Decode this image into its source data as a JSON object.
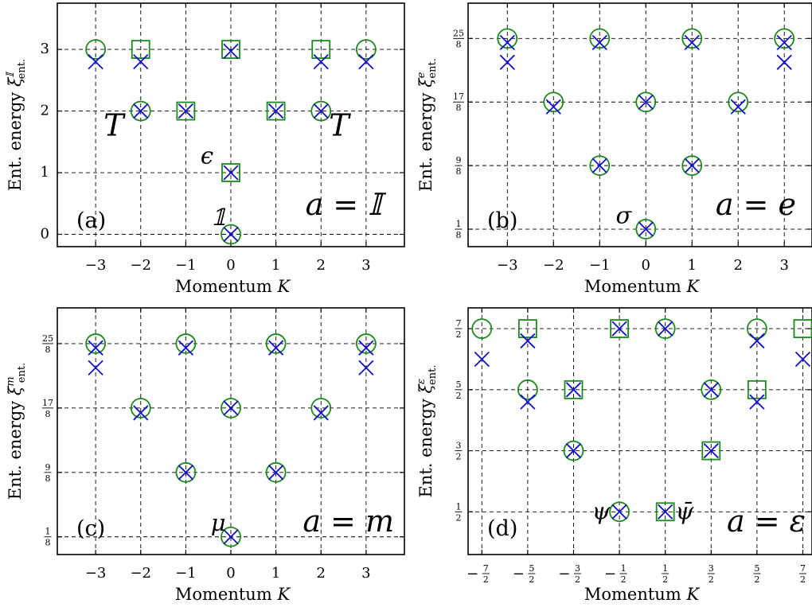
{
  "chart_data": [
    {
      "id": "a",
      "type": "scatter",
      "panel_label": "(a)",
      "sector_label": "a = 𝕀",
      "xlabel": "Momentum K",
      "ylabel": "Ent. energy ξ^𝕀_ent.",
      "xticks": [
        {
          "v": -3,
          "t": "−3"
        },
        {
          "v": -2,
          "t": "−2"
        },
        {
          "v": -1,
          "t": "−1"
        },
        {
          "v": 0,
          "t": "0"
        },
        {
          "v": 1,
          "t": "1"
        },
        {
          "v": 2,
          "t": "2"
        },
        {
          "v": 3,
          "t": "3"
        }
      ],
      "yticks": [
        {
          "v": 0,
          "t": "0"
        },
        {
          "v": 1,
          "t": "1"
        },
        {
          "v": 2,
          "t": "2"
        },
        {
          "v": 3,
          "t": "3"
        }
      ],
      "xlim": [
        -3.85,
        3.85
      ],
      "ylim": [
        -0.2,
        3.75
      ],
      "series": [
        {
          "marker": "circle",
          "points": [
            [
              0,
              0
            ],
            [
              -2,
              2
            ],
            [
              2,
              2
            ],
            [
              -3,
              3
            ],
            [
              3,
              3
            ]
          ]
        },
        {
          "marker": "square",
          "points": [
            [
              0,
              1
            ],
            [
              -1,
              2
            ],
            [
              1,
              2
            ],
            [
              -2,
              3
            ],
            [
              0,
              3
            ],
            [
              2,
              3
            ]
          ]
        },
        {
          "marker": "cross",
          "points": [
            [
              0,
              0
            ],
            [
              0,
              1
            ],
            [
              -2,
              2
            ],
            [
              -1,
              2
            ],
            [
              1,
              2
            ],
            [
              2,
              2
            ],
            [
              -3,
              2.8
            ],
            [
              -2,
              2.8
            ],
            [
              0,
              2.97
            ],
            [
              2,
              2.8
            ],
            [
              3,
              2.8
            ]
          ]
        }
      ],
      "annotations": [
        {
          "text": "𝟙",
          "x": -0.27,
          "y": 0.15,
          "style": "mid"
        },
        {
          "text": "ϵ",
          "x": -0.53,
          "y": 1.15,
          "style": "mid"
        },
        {
          "text": "T",
          "x": -2.6,
          "y": 1.6,
          "style": "big"
        },
        {
          "text": "T",
          "x": 2.4,
          "y": 1.6,
          "style": "big"
        }
      ]
    },
    {
      "id": "b",
      "type": "scatter",
      "panel_label": "(b)",
      "sector_label": "a = e",
      "xlabel": "Momentum K",
      "ylabel": "Ent. energy ξ^e_ent.",
      "xticks": [
        {
          "v": -3,
          "t": "−3"
        },
        {
          "v": -2,
          "t": "−2"
        },
        {
          "v": -1,
          "t": "−1"
        },
        {
          "v": 0,
          "t": "0"
        },
        {
          "v": 1,
          "t": "1"
        },
        {
          "v": 2,
          "t": "2"
        },
        {
          "v": 3,
          "t": "3"
        }
      ],
      "yticks": [
        {
          "v": 0.125,
          "t": "1/8"
        },
        {
          "v": 1.125,
          "t": "9/8"
        },
        {
          "v": 2.125,
          "t": "17/8"
        },
        {
          "v": 3.125,
          "t": "25/8"
        }
      ],
      "xlim": [
        -3.85,
        3.6
      ],
      "ylim": [
        -0.15,
        3.68
      ],
      "series": [
        {
          "marker": "circle",
          "points": [
            [
              0,
              0.125
            ],
            [
              -1,
              1.125
            ],
            [
              1,
              1.125
            ],
            [
              -2,
              2.125
            ],
            [
              0,
              2.125
            ],
            [
              2,
              2.125
            ],
            [
              -3,
              3.125
            ],
            [
              -1,
              3.125
            ],
            [
              1,
              3.125
            ],
            [
              3,
              3.125
            ]
          ]
        },
        {
          "marker": "cross",
          "points": [
            [
              0,
              0.125
            ],
            [
              -1,
              1.125
            ],
            [
              1,
              1.125
            ],
            [
              -2,
              2.05
            ],
            [
              0,
              2.125
            ],
            [
              2,
              2.05
            ],
            [
              -3,
              3.06
            ],
            [
              -1,
              3.06
            ],
            [
              1,
              3.06
            ],
            [
              3,
              3.06
            ],
            [
              -3,
              2.75
            ],
            [
              3,
              2.75
            ]
          ]
        }
      ],
      "annotations": [
        {
          "text": "σ",
          "x": -0.48,
          "y": 0.22,
          "style": "mid"
        }
      ]
    },
    {
      "id": "c",
      "type": "scatter",
      "panel_label": "(c)",
      "sector_label": "a = m",
      "xlabel": "Momentum K",
      "ylabel": "Ent. energy ξ^m_ent.",
      "xticks": [
        {
          "v": -3,
          "t": "−3"
        },
        {
          "v": -2,
          "t": "−2"
        },
        {
          "v": -1,
          "t": "−1"
        },
        {
          "v": 0,
          "t": "0"
        },
        {
          "v": 1,
          "t": "1"
        },
        {
          "v": 2,
          "t": "2"
        },
        {
          "v": 3,
          "t": "3"
        }
      ],
      "yticks": [
        {
          "v": 0.125,
          "t": "1/8"
        },
        {
          "v": 1.125,
          "t": "9/8"
        },
        {
          "v": 2.125,
          "t": "17/8"
        },
        {
          "v": 3.125,
          "t": "25/8"
        }
      ],
      "xlim": [
        -3.85,
        3.85
      ],
      "ylim": [
        -0.15,
        3.68
      ],
      "series": [
        {
          "marker": "circle",
          "points": [
            [
              0,
              0.125
            ],
            [
              -1,
              1.125
            ],
            [
              1,
              1.125
            ],
            [
              -2,
              2.125
            ],
            [
              0,
              2.125
            ],
            [
              2,
              2.125
            ],
            [
              -3,
              3.125
            ],
            [
              -1,
              3.125
            ],
            [
              1,
              3.125
            ],
            [
              3,
              3.125
            ]
          ]
        },
        {
          "marker": "cross",
          "points": [
            [
              0,
              0.125
            ],
            [
              -1,
              1.125
            ],
            [
              1,
              1.125
            ],
            [
              -2,
              2.05
            ],
            [
              0,
              2.125
            ],
            [
              2,
              2.05
            ],
            [
              -3,
              3.06
            ],
            [
              -1,
              3.06
            ],
            [
              1,
              3.06
            ],
            [
              3,
              3.06
            ],
            [
              -3,
              2.75
            ],
            [
              3,
              2.75
            ]
          ]
        }
      ],
      "annotations": [
        {
          "text": "μ",
          "x": -0.28,
          "y": 0.22,
          "style": "mid"
        }
      ]
    },
    {
      "id": "d",
      "type": "scatter",
      "panel_label": "(d)",
      "sector_label": "a = ε",
      "xlabel": "Momentum K",
      "ylabel": "Ent. energy ξ^ε_ent.",
      "xticks": [
        {
          "v": -3.5,
          "t": "−7/2"
        },
        {
          "v": -2.5,
          "t": "−5/2"
        },
        {
          "v": -1.5,
          "t": "−3/2"
        },
        {
          "v": -0.5,
          "t": "−1/2"
        },
        {
          "v": 0.5,
          "t": "1/2"
        },
        {
          "v": 1.5,
          "t": "3/2"
        },
        {
          "v": 2.5,
          "t": "5/2"
        },
        {
          "v": 3.5,
          "t": "7/2"
        }
      ],
      "yticks": [
        {
          "v": 0.5,
          "t": "1/2"
        },
        {
          "v": 1.5,
          "t": "3/2"
        },
        {
          "v": 2.5,
          "t": "5/2"
        },
        {
          "v": 3.5,
          "t": "7/2"
        }
      ],
      "xlim": [
        -3.8,
        3.7
      ],
      "ylim": [
        -0.2,
        3.84
      ],
      "series": [
        {
          "marker": "circle",
          "points": [
            [
              -0.5,
              0.5
            ],
            [
              -1.5,
              1.5
            ],
            [
              -2.5,
              2.5
            ],
            [
              1.5,
              2.5
            ],
            [
              -3.5,
              3.5
            ],
            [
              0.5,
              3.5
            ],
            [
              2.5,
              3.5
            ]
          ]
        },
        {
          "marker": "square",
          "points": [
            [
              0.5,
              0.5
            ],
            [
              1.5,
              1.5
            ],
            [
              -1.5,
              2.5
            ],
            [
              2.5,
              2.5
            ],
            [
              -2.5,
              3.5
            ],
            [
              -0.5,
              3.5
            ],
            [
              3.5,
              3.5
            ]
          ]
        },
        {
          "marker": "cross",
          "points": [
            [
              -0.5,
              0.5
            ],
            [
              0.5,
              0.5
            ],
            [
              -1.5,
              1.5
            ],
            [
              1.5,
              1.5
            ],
            [
              -1.5,
              2.5
            ],
            [
              1.5,
              2.5
            ],
            [
              -2.5,
              2.3
            ],
            [
              2.5,
              2.3
            ],
            [
              -2.5,
              3.3
            ],
            [
              -0.5,
              3.5
            ],
            [
              0.5,
              3.5
            ],
            [
              2.5,
              3.3
            ],
            [
              -3.5,
              3.0
            ],
            [
              3.5,
              3.0
            ]
          ]
        }
      ],
      "annotations": [
        {
          "text": "ψ",
          "x": -0.9,
          "y": 0.38,
          "style": "mid"
        },
        {
          "text": "ψ̄",
          "x": 0.92,
          "y": 0.38,
          "style": "mid"
        }
      ]
    }
  ]
}
